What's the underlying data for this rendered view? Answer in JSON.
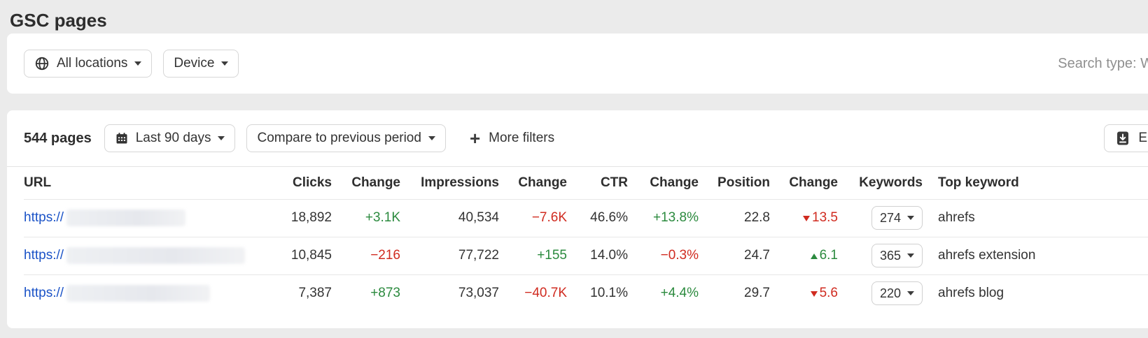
{
  "page": {
    "title": "GSC pages"
  },
  "filters": {
    "location_label": "All locations",
    "device_label": "Device",
    "search_type_label": "Search type: W"
  },
  "toolbar": {
    "pages_count": "544 pages",
    "date_range_label": "Last 90 days",
    "compare_label": "Compare to previous period",
    "more_filters_label": "More filters",
    "export_label": "E"
  },
  "colors": {
    "positive": "#2b8a3e",
    "negative": "#d02b20",
    "link": "#1b53c7"
  },
  "table": {
    "headers": [
      "URL",
      "Clicks",
      "Change",
      "Impressions",
      "Change",
      "CTR",
      "Change",
      "Position",
      "Change",
      "Keywords",
      "Top keyword"
    ],
    "rows": [
      {
        "url_prefix": "https://",
        "url_blur_width": 170,
        "clicks": "18,892",
        "clicks_change": "+3.1K",
        "clicks_change_dir": "up",
        "impressions": "40,534",
        "impressions_change": "−7.6K",
        "impressions_change_dir": "down",
        "ctr": "46.6%",
        "ctr_change": "+13.8%",
        "ctr_change_dir": "up",
        "position": "22.8",
        "position_change": "13.5",
        "position_change_dir": "down",
        "keywords": "274",
        "top_keyword": "ahrefs"
      },
      {
        "url_prefix": "https://",
        "url_blur_width": 255,
        "clicks": "10,845",
        "clicks_change": "−216",
        "clicks_change_dir": "down",
        "impressions": "77,722",
        "impressions_change": "+155",
        "impressions_change_dir": "up",
        "ctr": "14.0%",
        "ctr_change": "−0.3%",
        "ctr_change_dir": "down",
        "position": "24.7",
        "position_change": "6.1",
        "position_change_dir": "up",
        "keywords": "365",
        "top_keyword": "ahrefs extension"
      },
      {
        "url_prefix": "https://",
        "url_blur_width": 205,
        "clicks": "7,387",
        "clicks_change": "+873",
        "clicks_change_dir": "up",
        "impressions": "73,037",
        "impressions_change": "−40.7K",
        "impressions_change_dir": "down",
        "ctr": "10.1%",
        "ctr_change": "+4.4%",
        "ctr_change_dir": "up",
        "position": "29.7",
        "position_change": "5.6",
        "position_change_dir": "down",
        "keywords": "220",
        "top_keyword": "ahrefs blog"
      }
    ]
  }
}
